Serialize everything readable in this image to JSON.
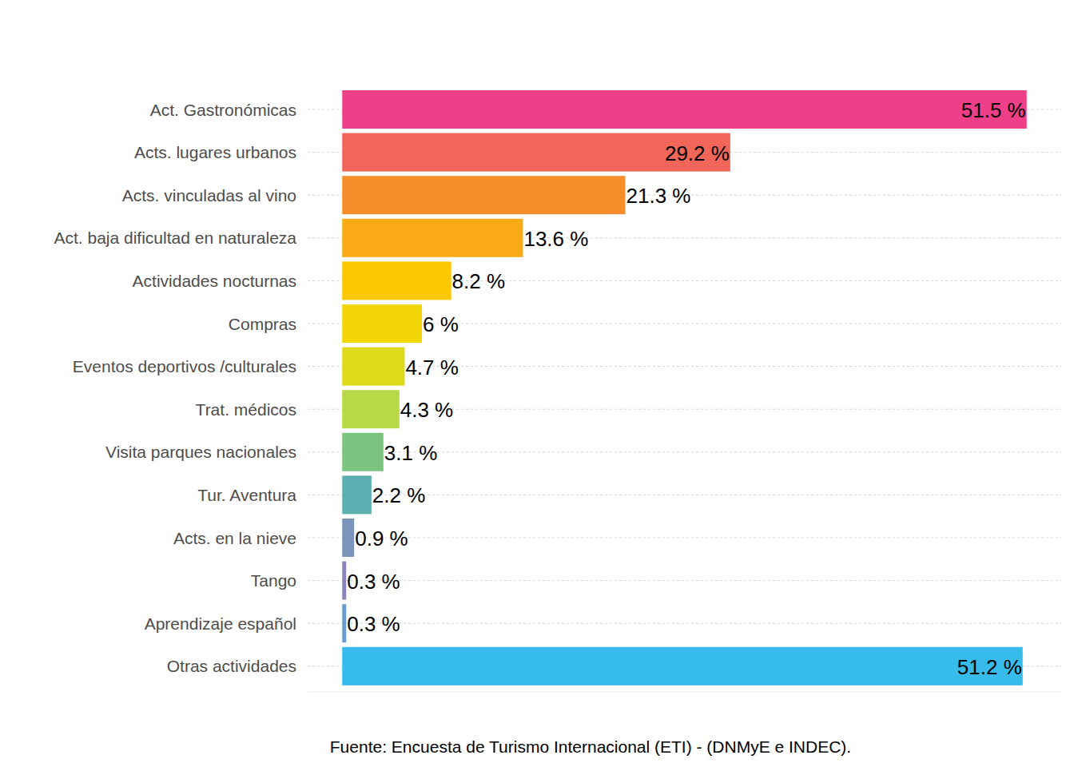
{
  "chart_data": {
    "type": "bar",
    "orientation": "horizontal",
    "categories": [
      "Act. Gastronómicas",
      "Acts. lugares urbanos",
      "Acts. vinculadas al vino",
      "Act. baja dificultad en naturaleza",
      "Actividades nocturnas",
      "Compras",
      "Eventos deportivos /culturales",
      "Trat. médicos",
      "Visita parques nacionales",
      "Tur. Aventura",
      "Acts. en la nieve",
      "Tango",
      "Aprendizaje español",
      "Otras actividades"
    ],
    "values": [
      51.5,
      29.2,
      21.3,
      13.6,
      8.2,
      6,
      4.7,
      4.3,
      3.1,
      2.2,
      0.9,
      0.3,
      0.3,
      51.2
    ],
    "value_labels": [
      "51.5 %",
      "29.2 %",
      "21.3 %",
      "13.6 %",
      "8.2 %",
      "6 %",
      "4.7 %",
      "4.3 %",
      "3.1 %",
      "2.2 %",
      "0.9 %",
      "0.3 %",
      "0.3 %",
      "51.2 %"
    ],
    "colors": [
      "#EF3F88",
      "#F26659",
      "#F78C2A",
      "#F9AA16",
      "#FCC600",
      "#F2D60A",
      "#DEDA1A",
      "#B8D845",
      "#7BC47F",
      "#5BAFB1",
      "#7B94BB",
      "#8A86BA",
      "#6A9CD0",
      "#37BBEA"
    ],
    "xlim": [
      -2.6,
      54.1
    ],
    "data_labels": true,
    "tick_labels": "y",
    "grid": true,
    "source": "Fuente: Encuesta de Turismo Internacional (ETI) - (DNMyE e INDEC)."
  }
}
